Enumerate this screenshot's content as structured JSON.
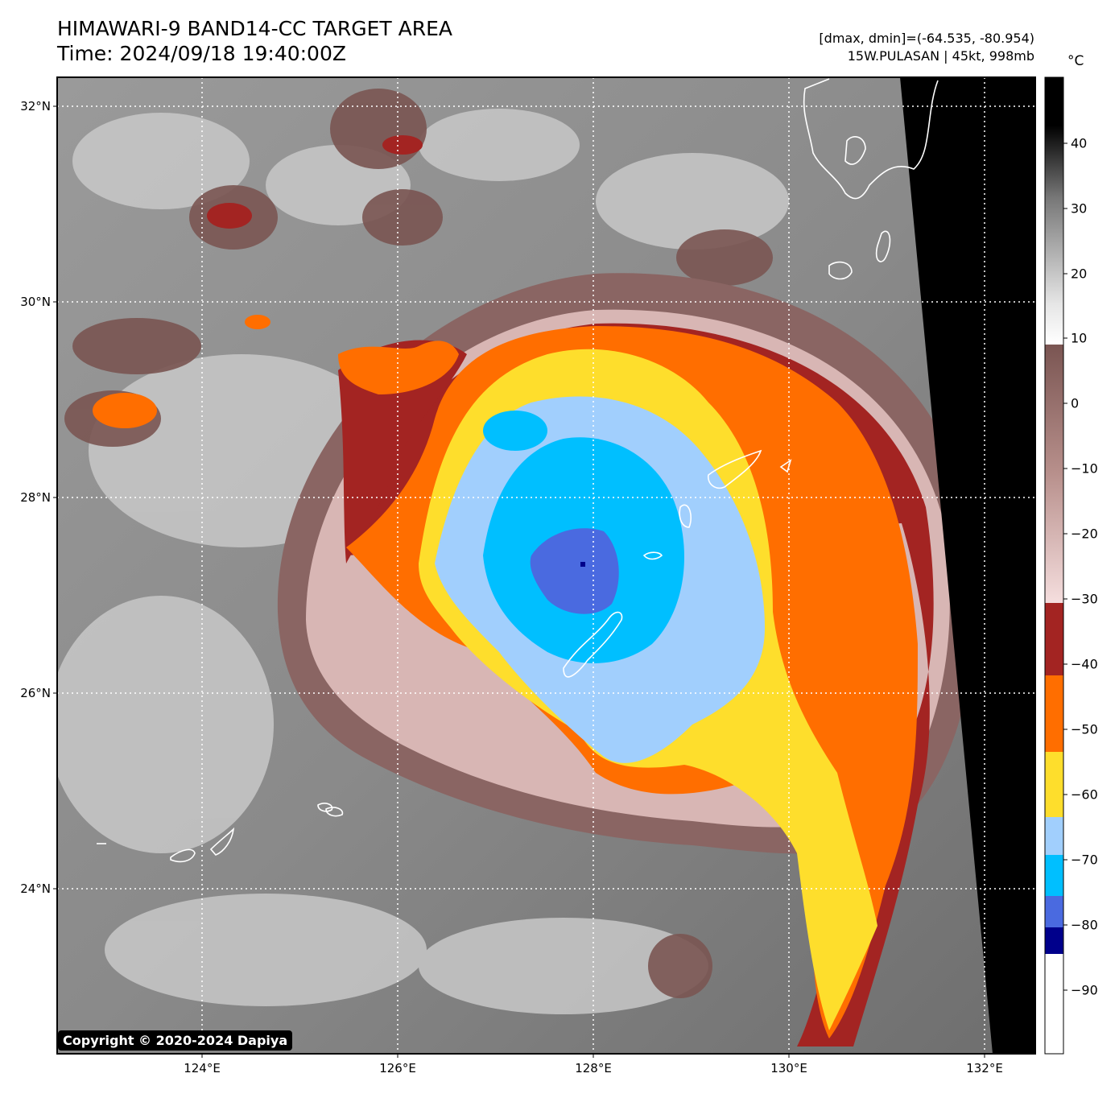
{
  "header": {
    "title_line1": "HIMAWARI-9 BAND14-CC TARGET AREA",
    "title_line2": "Time: 2024/09/18 19:40:00Z",
    "range_text": "[dmax, dmin]=(-64.535, -80.954)",
    "storm_text": "15W.PULASAN | 45kt, 998mb"
  },
  "map": {
    "latitude_labels": [
      "32°N",
      "30°N",
      "28°N",
      "26°N",
      "24°N"
    ],
    "longitude_labels": [
      "124°E",
      "126°E",
      "128°E",
      "130°E",
      "132°E"
    ],
    "copyright": "Copyright © 2020-2024 Dapiya"
  },
  "colorbar": {
    "unit": "°C",
    "tick_labels": [
      "40",
      "30",
      "20",
      "10",
      "0",
      "−10",
      "−20",
      "−30",
      "−40",
      "−50",
      "−60",
      "−70",
      "−80",
      "−90"
    ],
    "colors": {
      "warm_black": "#000000",
      "warm_gray": "#888888",
      "near_white": "#f4f4f4",
      "brown": "#7a5552",
      "pink": "#f2d6d6",
      "dark_red": "#a32422",
      "orange": "#ff6e00",
      "yellow": "#fede2c",
      "light_blue": "#a1cffd",
      "cyan": "#00bfff",
      "royal_blue": "#4a6ae0",
      "navy": "#00008b",
      "cold_white": "#ffffff"
    }
  }
}
